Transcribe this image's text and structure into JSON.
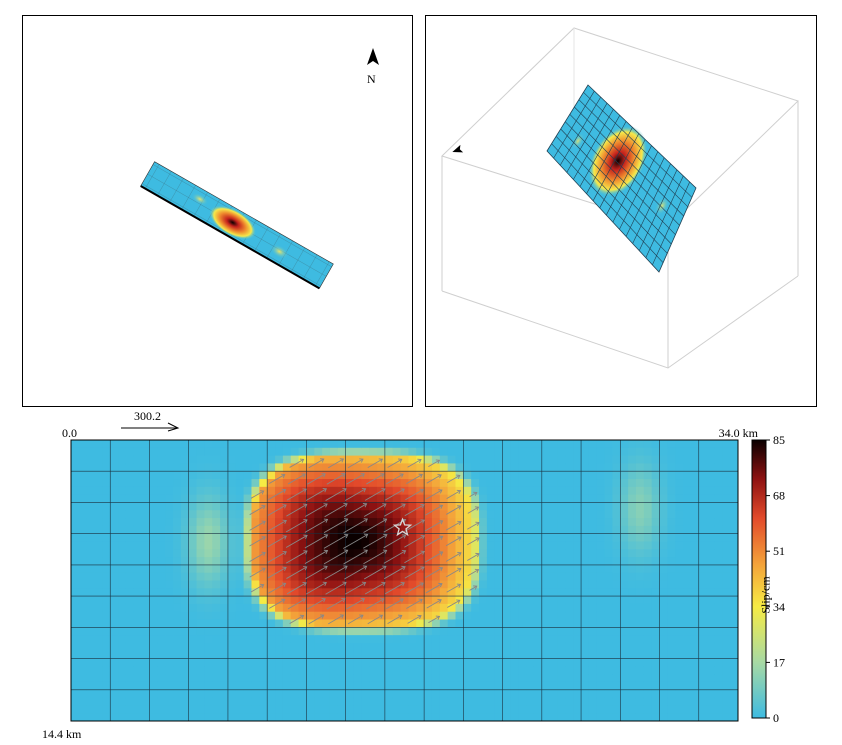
{
  "map_view": {
    "north_label": "N"
  },
  "strike_label": "300.2",
  "corner_labels": {
    "top_left": "0.0",
    "top_right": "34.0 km",
    "bottom_left": "14.4 km"
  },
  "colorbar": {
    "title": "Slip/cm",
    "ticks": [
      0,
      17,
      34,
      51,
      68,
      85
    ],
    "min": 0,
    "max": 85
  },
  "colors": {
    "zero_slip": "#3ebbe1",
    "low": "#f6eb44",
    "mid": "#e8382a",
    "high": "#0a0000"
  },
  "chart_data": {
    "type": "heatmap",
    "quantity": "Slip/cm",
    "along_strike_range_km": [
      0,
      34.0
    ],
    "down_dip_range_km": [
      0,
      14.4
    ],
    "colorbar_range": [
      0,
      85
    ],
    "strike": "300.2",
    "grid_cells": {
      "along_strike": 17,
      "down_dip": 9
    },
    "main_patch": {
      "peak_slip_cm": 85,
      "center_km": [
        14.9,
        5.2
      ],
      "extent_km": [
        11.0,
        8.5
      ]
    },
    "secondary_patches": [
      {
        "slip_cm": 15,
        "center_km": [
          7.0,
          5.2
        ]
      },
      {
        "slip_cm": 12,
        "center_km": [
          29.0,
          3.5
        ]
      }
    ],
    "hypocenter_km": [
      16.9,
      4.5
    ],
    "grid": true
  }
}
